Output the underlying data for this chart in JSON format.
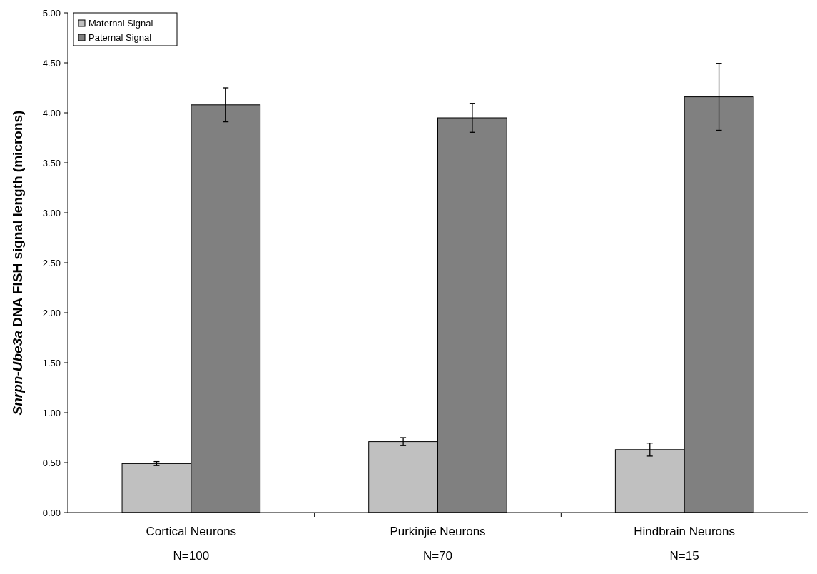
{
  "chart_data": {
    "type": "bar",
    "ylabel": "Snrpn-Ube3a DNA FISH signal length (microns)",
    "categories": [
      "Cortical Neurons",
      "Purkinjie Neurons",
      "Hindbrain Neurons"
    ],
    "series": [
      {
        "name": "Maternal Signal",
        "color": "#c0c0c0",
        "values": [
          0.49,
          0.71,
          0.63
        ],
        "errors": [
          0.02,
          0.04,
          0.065
        ]
      },
      {
        "name": "Paternal Signal",
        "color": "#808080",
        "values": [
          4.08,
          3.95,
          4.16
        ],
        "errors": [
          0.17,
          0.145,
          0.335
        ]
      }
    ],
    "annotations": [
      "N=100",
      "N=70",
      "N=15"
    ],
    "ylim": [
      0,
      5
    ],
    "yticks": [
      {
        "value": 0,
        "label": "0.00"
      },
      {
        "value": 0.5,
        "label": "0.50"
      },
      {
        "value": 1,
        "label": "1.00"
      },
      {
        "value": 1.5,
        "label": "1.50"
      },
      {
        "value": 2,
        "label": "2.00"
      },
      {
        "value": 2.5,
        "label": "2.50"
      },
      {
        "value": 3,
        "label": "3.00"
      },
      {
        "value": 3.5,
        "label": "3.50"
      },
      {
        "value": 4,
        "label": "4.00"
      },
      {
        "value": 4.5,
        "label": "4.50"
      },
      {
        "value": 5,
        "label": "5.00"
      }
    ],
    "legend": "top left"
  }
}
